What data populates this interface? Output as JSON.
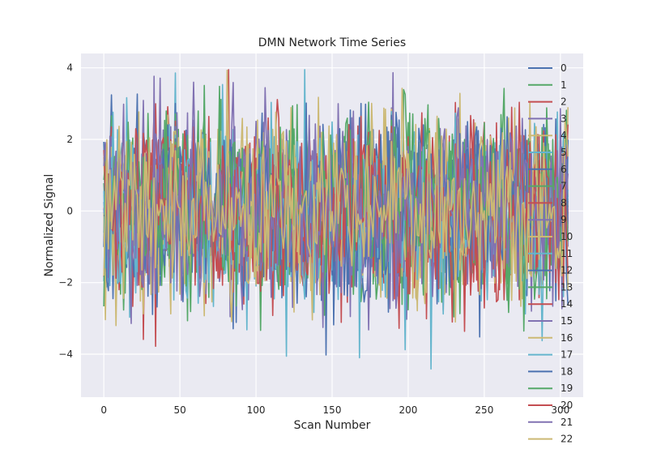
{
  "chart_data": {
    "type": "line",
    "title": "DMN Network Time Series",
    "xlabel": "Scan Number",
    "ylabel": "Normalized Signal",
    "xlim": [
      -15,
      315
    ],
    "ylim": [
      -5.2,
      4.4
    ],
    "x_ticks": [
      0,
      50,
      100,
      150,
      200,
      250,
      300
    ],
    "y_ticks": [
      -4,
      -2,
      0,
      2,
      4
    ],
    "n_points": 306,
    "grid": true,
    "legend_position": "right",
    "series_names": [
      "0",
      "1",
      "2",
      "3",
      "4",
      "5",
      "6",
      "7",
      "8",
      "9",
      "10",
      "11",
      "12",
      "13",
      "14",
      "15",
      "16",
      "17",
      "18",
      "19",
      "20",
      "21",
      "22"
    ],
    "palette": [
      "#4c72b0",
      "#55a868",
      "#c44e52",
      "#8172b2",
      "#ccb974",
      "#64b5cd"
    ],
    "y_range_observed": [
      -4.75,
      3.95
    ],
    "notes_visible": "dense overlapping noise-like signals roughly between -3 and 3"
  }
}
